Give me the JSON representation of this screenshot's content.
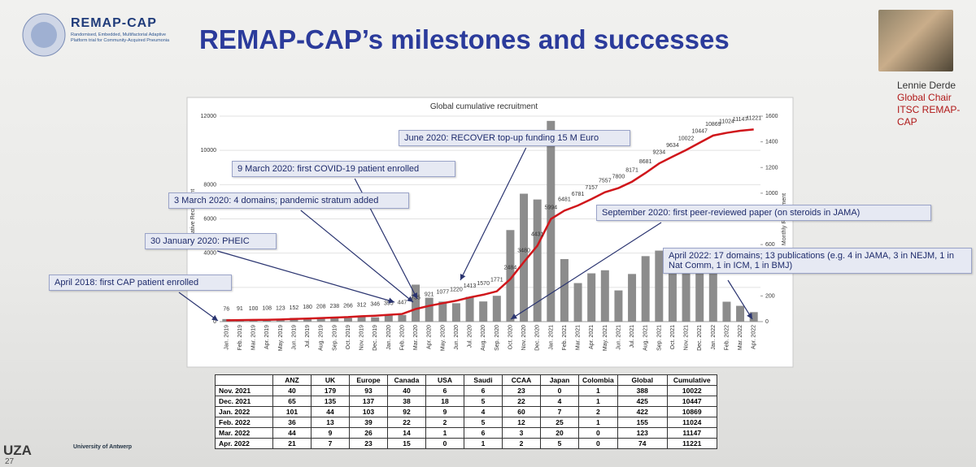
{
  "header": {
    "logo": "REMAP-CAP",
    "logo_subtitle": "Randomised, Embedded, Multifactorial Adaptive Platform trial for Community-Acquired Pneumonia",
    "title": "REMAP-CAP’s milestones and successes"
  },
  "speaker": {
    "name": "Lennie Derde",
    "role": "Global Chair",
    "org": "ITSC REMAP-CAP"
  },
  "chart_data": {
    "type": "bar-line",
    "title": "Global cumulative recruitment",
    "y_label": "Cumulative Recruitment",
    "y2_label": "Monthly Recruitment",
    "categories": [
      "Jan. 2019",
      "Feb. 2019",
      "Mar. 2019",
      "Apr. 2019",
      "May. 2019",
      "Jun. 2019",
      "Jul. 2019",
      "Aug. 2019",
      "Sep. 2019",
      "Oct. 2019",
      "Nov. 2019",
      "Dec. 2019",
      "Jan. 2020",
      "Feb. 2020",
      "Mar. 2020",
      "Apr. 2020",
      "May. 2020",
      "Jun. 2020",
      "Jul. 2020",
      "Aug. 2020",
      "Sep. 2020",
      "Oct. 2020",
      "Nov. 2020",
      "Dec. 2020",
      "Jan. 2021",
      "Feb. 2021",
      "Mar. 2021",
      "Apr. 2021",
      "May. 2021",
      "Jun. 2021",
      "Jul. 2021",
      "Aug. 2021",
      "Sep. 2021",
      "Oct. 2021",
      "Nov. 2021",
      "Dec. 2021",
      "Jan. 2022",
      "Feb. 2022",
      "Mar. 2022",
      "Apr. 2022"
    ],
    "series": [
      {
        "name": "Monthly Recruitment",
        "type": "bar",
        "axis": "y2",
        "color": "#8c8c8c",
        "values": [
          20,
          15,
          9,
          8,
          15,
          29,
          28,
          28,
          30,
          28,
          46,
          34,
          49,
          52,
          288,
          186,
          156,
          143,
          193,
          157,
          201,
          713,
          996,
          951,
          1563,
          487,
          300,
          376,
          400,
          243,
          371,
          510,
          553,
          400,
          388,
          425,
          422,
          155,
          123,
          74
        ]
      },
      {
        "name": "Cumulative Recruitment",
        "type": "line",
        "color": "#d0161b",
        "values": [
          76,
          91,
          100,
          108,
          123,
          152,
          180,
          208,
          238,
          266,
          312,
          346,
          395,
          447,
          735,
          921,
          1077,
          1220,
          1413,
          1570,
          1771,
          2484,
          3480,
          4431,
          5994,
          6481,
          6781,
          7157,
          7557,
          7800,
          8171,
          8681,
          9234,
          9634,
          10022,
          10447,
          10869,
          11024,
          11147,
          11221
        ]
      }
    ],
    "ylim": [
      0,
      12000
    ],
    "yticks": [
      0,
      2000,
      4000,
      6000,
      8000,
      10000,
      12000
    ],
    "y2lim": [
      0,
      1600
    ],
    "y2ticks": [
      0,
      200,
      400,
      600,
      800,
      1000,
      1200,
      1400,
      1600
    ],
    "annotations": [
      "April 2018: first CAP patient enrolled",
      "30 January 2020: PHEIC",
      "3 March 2020: 4 domains; pandemic stratum added",
      "9 March 2020: first COVID-19 patient enrolled",
      "June 2020: RECOVER top-up funding 15 M Euro",
      "September 2020: first peer-reviewed paper (on steroids in JAMA)",
      "April 2022: 17 domains; 13 publications (e.g. 4 in JAMA, 3 in NEJM, 1 in Nat Comm, 1 in ICM, 1 in BMJ)"
    ]
  },
  "table": {
    "columns": [
      "ANZ",
      "UK",
      "Europe",
      "Canada",
      "USA",
      "Saudi",
      "CCAA",
      "Japan",
      "Colombia",
      "Global",
      "Cumulative"
    ],
    "rows": [
      [
        "Nov. 2021",
        40,
        179,
        93,
        40,
        6,
        6,
        23,
        0,
        1,
        388,
        10022
      ],
      [
        "Dec. 2021",
        65,
        135,
        137,
        38,
        18,
        5,
        22,
        4,
        1,
        425,
        10447
      ],
      [
        "Jan. 2022",
        101,
        44,
        103,
        92,
        9,
        4,
        60,
        7,
        2,
        422,
        10869
      ],
      [
        "Feb. 2022",
        36,
        13,
        39,
        22,
        2,
        5,
        12,
        25,
        1,
        155,
        11024
      ],
      [
        "Mar. 2022",
        44,
        9,
        26,
        14,
        1,
        6,
        3,
        20,
        0,
        123,
        11147
      ],
      [
        "Apr. 2022",
        21,
        7,
        23,
        15,
        0,
        1,
        2,
        5,
        0,
        74,
        11221
      ]
    ]
  },
  "footer": {
    "brand": "UZA",
    "page": "27",
    "university": "University of Antwerp"
  }
}
